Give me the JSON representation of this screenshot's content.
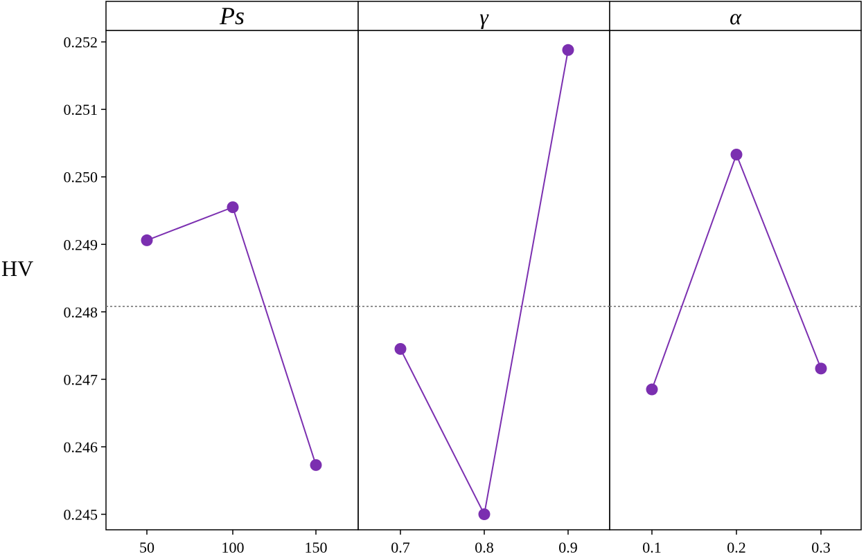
{
  "chart_data": {
    "type": "line",
    "ylabel": "HV",
    "ylim": [
      0.24477,
      0.25217
    ],
    "y_ticks": [
      "0.245",
      "0.246",
      "0.247",
      "0.248",
      "0.249",
      "0.250",
      "0.251",
      "0.252"
    ],
    "y_tick_values": [
      0.245,
      0.246,
      0.247,
      0.248,
      0.249,
      0.25,
      0.251,
      0.252
    ],
    "reference_line": 0.24808,
    "grid": false,
    "colors": {
      "series": "#7b2fb0",
      "frame": "#000000",
      "reference": "#777777"
    },
    "panels": [
      {
        "title": "Ps",
        "categories": [
          "50",
          "100",
          "150"
        ],
        "values": [
          0.24906,
          0.24955,
          0.24573
        ]
      },
      {
        "title": "γ",
        "categories": [
          "0.7",
          "0.8",
          "0.9"
        ],
        "values": [
          0.24745,
          0.245,
          0.25188
        ]
      },
      {
        "title": "α",
        "categories": [
          "0.1",
          "0.2",
          "0.3"
        ],
        "values": [
          0.24685,
          0.25033,
          0.24716
        ]
      }
    ]
  }
}
